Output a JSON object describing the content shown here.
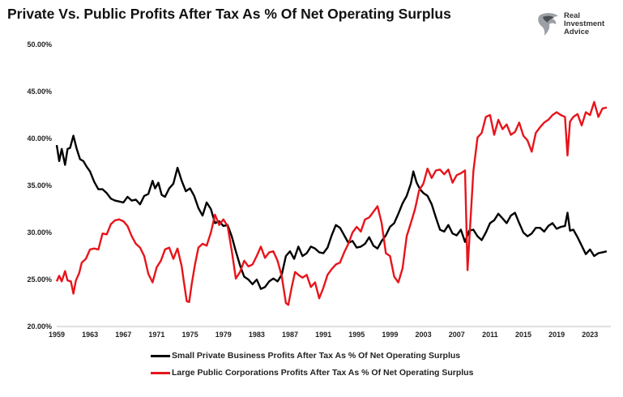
{
  "title": "Private Vs. Public Profits After Tax As % Of Net Operating Surplus",
  "logo": {
    "line1": "Real",
    "line2": "Investment",
    "line3": "Advice",
    "icon": "eagle-head-icon"
  },
  "chart_data": {
    "type": "line",
    "title": "Private Vs. Public Profits After Tax As % Of Net Operating Surplus",
    "xlim": [
      1959,
      2025.5
    ],
    "ylim": [
      20,
      50
    ],
    "x_ticks": [
      1959,
      1963,
      1967,
      1971,
      1975,
      1979,
      1983,
      1987,
      1991,
      1995,
      1999,
      2003,
      2007,
      2011,
      2015,
      2019,
      2023
    ],
    "y_ticks": [
      20,
      25,
      30,
      35,
      40,
      45,
      50
    ],
    "y_tick_labels": [
      "20.00%",
      "25.00%",
      "30.00%",
      "35.00%",
      "40.00%",
      "45.00%",
      "50.00%"
    ],
    "grid": false,
    "legend_position": "bottom",
    "series": [
      {
        "name": "Small Private Business Profits After Tax As % Of Net Operating Surplus",
        "color": "#000000",
        "points": [
          [
            1959,
            39.3
          ],
          [
            1959.3,
            37.6
          ],
          [
            1959.6,
            38.9
          ],
          [
            1960,
            37.2
          ],
          [
            1960.3,
            38.9
          ],
          [
            1960.6,
            39.0
          ],
          [
            1961,
            40.3
          ],
          [
            1961.4,
            38.9
          ],
          [
            1961.8,
            37.8
          ],
          [
            1962.2,
            37.6
          ],
          [
            1962.6,
            37.0
          ],
          [
            1963,
            36.5
          ],
          [
            1963.5,
            35.4
          ],
          [
            1964,
            34.6
          ],
          [
            1964.5,
            34.6
          ],
          [
            1965,
            34.2
          ],
          [
            1965.5,
            33.6
          ],
          [
            1966,
            33.4
          ],
          [
            1966.5,
            33.3
          ],
          [
            1967,
            33.2
          ],
          [
            1967.5,
            33.8
          ],
          [
            1968,
            33.4
          ],
          [
            1968.5,
            33.5
          ],
          [
            1969,
            33.0
          ],
          [
            1969.5,
            33.9
          ],
          [
            1970,
            34.1
          ],
          [
            1970.5,
            35.5
          ],
          [
            1970.8,
            34.7
          ],
          [
            1971.2,
            35.3
          ],
          [
            1971.6,
            34.0
          ],
          [
            1972,
            33.8
          ],
          [
            1972.5,
            34.7
          ],
          [
            1973,
            35.2
          ],
          [
            1973.5,
            36.9
          ],
          [
            1974,
            35.5
          ],
          [
            1974.5,
            34.4
          ],
          [
            1975,
            34.7
          ],
          [
            1975.5,
            33.9
          ],
          [
            1976,
            32.6
          ],
          [
            1976.5,
            31.8
          ],
          [
            1977,
            33.2
          ],
          [
            1977.5,
            32.5
          ],
          [
            1978,
            31.0
          ],
          [
            1978.5,
            31.2
          ],
          [
            1979,
            30.7
          ],
          [
            1979.5,
            30.8
          ],
          [
            1980,
            29.6
          ],
          [
            1980.5,
            28.0
          ],
          [
            1981,
            26.5
          ],
          [
            1981.5,
            25.3
          ],
          [
            1982,
            25.0
          ],
          [
            1982.5,
            24.5
          ],
          [
            1983,
            25.0
          ],
          [
            1983.5,
            24.0
          ],
          [
            1984,
            24.2
          ],
          [
            1984.5,
            24.8
          ],
          [
            1985,
            25.1
          ],
          [
            1985.5,
            24.8
          ],
          [
            1986,
            25.5
          ],
          [
            1986.5,
            27.5
          ],
          [
            1987,
            28.0
          ],
          [
            1987.5,
            27.2
          ],
          [
            1988,
            28.5
          ],
          [
            1988.5,
            27.5
          ],
          [
            1989,
            27.8
          ],
          [
            1989.5,
            28.5
          ],
          [
            1990,
            28.3
          ],
          [
            1990.5,
            27.9
          ],
          [
            1991,
            27.8
          ],
          [
            1991.5,
            28.4
          ],
          [
            1992,
            29.7
          ],
          [
            1992.5,
            30.8
          ],
          [
            1993,
            30.5
          ],
          [
            1993.5,
            29.7
          ],
          [
            1994,
            28.9
          ],
          [
            1994.5,
            29.1
          ],
          [
            1995,
            28.4
          ],
          [
            1995.5,
            28.5
          ],
          [
            1996,
            28.8
          ],
          [
            1996.5,
            29.5
          ],
          [
            1997,
            28.6
          ],
          [
            1997.5,
            28.3
          ],
          [
            1998,
            29.1
          ],
          [
            1998.5,
            29.7
          ],
          [
            1999,
            30.6
          ],
          [
            1999.5,
            31.0
          ],
          [
            2000,
            32.0
          ],
          [
            2000.5,
            33.1
          ],
          [
            2001,
            33.9
          ],
          [
            2001.5,
            35.2
          ],
          [
            2001.8,
            36.5
          ],
          [
            2002.2,
            35.3
          ],
          [
            2002.6,
            34.6
          ],
          [
            2003,
            34.2
          ],
          [
            2003.5,
            33.9
          ],
          [
            2004,
            33.0
          ],
          [
            2004.5,
            31.6
          ],
          [
            2005,
            30.3
          ],
          [
            2005.5,
            30.1
          ],
          [
            2006,
            30.8
          ],
          [
            2006.5,
            29.9
          ],
          [
            2007,
            29.7
          ],
          [
            2007.5,
            30.3
          ],
          [
            2008,
            29.0
          ],
          [
            2008.5,
            30.2
          ],
          [
            2009,
            30.3
          ],
          [
            2009.5,
            29.6
          ],
          [
            2010,
            29.2
          ],
          [
            2010.5,
            30.0
          ],
          [
            2011,
            31.0
          ],
          [
            2011.5,
            31.3
          ],
          [
            2012,
            32.0
          ],
          [
            2012.5,
            31.5
          ],
          [
            2013,
            31.0
          ],
          [
            2013.5,
            31.8
          ],
          [
            2014,
            32.1
          ],
          [
            2014.5,
            31.0
          ],
          [
            2015,
            30.0
          ],
          [
            2015.5,
            29.6
          ],
          [
            2016,
            29.9
          ],
          [
            2016.5,
            30.5
          ],
          [
            2017,
            30.5
          ],
          [
            2017.5,
            30.1
          ],
          [
            2018,
            30.7
          ],
          [
            2018.5,
            31.0
          ],
          [
            2019,
            30.4
          ],
          [
            2019.5,
            30.6
          ],
          [
            2020,
            30.7
          ],
          [
            2020.3,
            32.1
          ],
          [
            2020.6,
            30.2
          ],
          [
            2021,
            30.3
          ],
          [
            2021.5,
            29.5
          ],
          [
            2022,
            28.6
          ],
          [
            2022.5,
            27.7
          ],
          [
            2023,
            28.2
          ],
          [
            2023.5,
            27.5
          ],
          [
            2024,
            27.8
          ],
          [
            2024.5,
            27.9
          ],
          [
            2025,
            28.0
          ]
        ]
      },
      {
        "name": "Large Public Corporations Profits After Tax As % Of Net Operating Surplus",
        "color": "#e8141b",
        "points": [
          [
            1959,
            24.8
          ],
          [
            1959.3,
            25.4
          ],
          [
            1959.6,
            24.8
          ],
          [
            1960,
            25.9
          ],
          [
            1960.3,
            24.9
          ],
          [
            1960.7,
            24.8
          ],
          [
            1961,
            23.5
          ],
          [
            1961.3,
            24.9
          ],
          [
            1961.7,
            25.7
          ],
          [
            1962,
            26.8
          ],
          [
            1962.5,
            27.2
          ],
          [
            1963,
            28.2
          ],
          [
            1963.5,
            28.3
          ],
          [
            1964,
            28.2
          ],
          [
            1964.5,
            29.9
          ],
          [
            1965,
            29.8
          ],
          [
            1965.5,
            30.9
          ],
          [
            1966,
            31.3
          ],
          [
            1966.5,
            31.4
          ],
          [
            1967,
            31.2
          ],
          [
            1967.5,
            30.7
          ],
          [
            1968,
            29.6
          ],
          [
            1968.5,
            28.8
          ],
          [
            1969,
            28.4
          ],
          [
            1969.5,
            27.5
          ],
          [
            1970,
            25.6
          ],
          [
            1970.5,
            24.7
          ],
          [
            1971,
            26.3
          ],
          [
            1971.5,
            27.0
          ],
          [
            1972,
            28.2
          ],
          [
            1972.5,
            28.4
          ],
          [
            1973,
            27.2
          ],
          [
            1973.5,
            28.3
          ],
          [
            1974,
            26.4
          ],
          [
            1974.3,
            24.5
          ],
          [
            1974.6,
            22.7
          ],
          [
            1974.9,
            22.6
          ],
          [
            1975.2,
            24.5
          ],
          [
            1975.6,
            26.6
          ],
          [
            1976,
            28.4
          ],
          [
            1976.5,
            28.8
          ],
          [
            1977,
            28.6
          ],
          [
            1977.5,
            30.0
          ],
          [
            1978,
            31.9
          ],
          [
            1978.5,
            30.8
          ],
          [
            1979,
            31.4
          ],
          [
            1979.5,
            30.7
          ],
          [
            1980,
            28.1
          ],
          [
            1980.5,
            25.1
          ],
          [
            1981,
            25.8
          ],
          [
            1981.5,
            27.0
          ],
          [
            1982,
            26.4
          ],
          [
            1982.5,
            26.6
          ],
          [
            1983,
            27.5
          ],
          [
            1983.5,
            28.5
          ],
          [
            1984,
            27.3
          ],
          [
            1984.5,
            27.9
          ],
          [
            1985,
            28.0
          ],
          [
            1985.5,
            27.0
          ],
          [
            1986,
            25.4
          ],
          [
            1986.5,
            22.5
          ],
          [
            1986.8,
            22.3
          ],
          [
            1987.2,
            24.2
          ],
          [
            1987.6,
            25.8
          ],
          [
            1988,
            25.5
          ],
          [
            1988.5,
            25.2
          ],
          [
            1989,
            25.5
          ],
          [
            1989.5,
            24.2
          ],
          [
            1990,
            24.7
          ],
          [
            1990.5,
            23.0
          ],
          [
            1991,
            24.1
          ],
          [
            1991.5,
            25.5
          ],
          [
            1992,
            26.1
          ],
          [
            1992.5,
            26.6
          ],
          [
            1993,
            26.8
          ],
          [
            1993.5,
            27.9
          ],
          [
            1994,
            28.8
          ],
          [
            1994.5,
            30.0
          ],
          [
            1995,
            30.6
          ],
          [
            1995.5,
            30.1
          ],
          [
            1996,
            31.4
          ],
          [
            1996.5,
            31.6
          ],
          [
            1997,
            32.2
          ],
          [
            1997.5,
            32.8
          ],
          [
            1998,
            31.0
          ],
          [
            1998.5,
            27.8
          ],
          [
            1999,
            27.5
          ],
          [
            1999.5,
            25.3
          ],
          [
            2000,
            24.7
          ],
          [
            2000.5,
            26.2
          ],
          [
            2001,
            29.6
          ],
          [
            2001.5,
            31.0
          ],
          [
            2002,
            32.5
          ],
          [
            2002.5,
            34.5
          ],
          [
            2003,
            35.2
          ],
          [
            2003.5,
            36.8
          ],
          [
            2004,
            35.8
          ],
          [
            2004.5,
            36.6
          ],
          [
            2005,
            36.7
          ],
          [
            2005.5,
            36.2
          ],
          [
            2006,
            36.7
          ],
          [
            2006.5,
            35.3
          ],
          [
            2007,
            36.1
          ],
          [
            2007.5,
            36.3
          ],
          [
            2008,
            36.6
          ],
          [
            2008.3,
            26.0
          ],
          [
            2008.6,
            30.5
          ],
          [
            2009,
            36.5
          ],
          [
            2009.5,
            40.1
          ],
          [
            2010,
            40.6
          ],
          [
            2010.5,
            42.3
          ],
          [
            2011,
            42.5
          ],
          [
            2011.5,
            40.4
          ],
          [
            2012,
            42.0
          ],
          [
            2012.5,
            41.0
          ],
          [
            2013,
            41.5
          ],
          [
            2013.5,
            40.4
          ],
          [
            2014,
            40.7
          ],
          [
            2014.5,
            41.7
          ],
          [
            2015,
            40.3
          ],
          [
            2015.5,
            39.8
          ],
          [
            2016,
            38.6
          ],
          [
            2016.5,
            40.6
          ],
          [
            2017,
            41.2
          ],
          [
            2017.5,
            41.7
          ],
          [
            2018,
            42.0
          ],
          [
            2018.5,
            42.5
          ],
          [
            2019,
            42.8
          ],
          [
            2019.5,
            42.5
          ],
          [
            2020,
            42.3
          ],
          [
            2020.3,
            38.2
          ],
          [
            2020.6,
            41.8
          ],
          [
            2021,
            42.3
          ],
          [
            2021.5,
            42.6
          ],
          [
            2022,
            41.4
          ],
          [
            2022.5,
            42.8
          ],
          [
            2023,
            42.5
          ],
          [
            2023.5,
            43.9
          ],
          [
            2024,
            42.3
          ],
          [
            2024.5,
            43.2
          ],
          [
            2025,
            43.3
          ]
        ]
      }
    ]
  }
}
